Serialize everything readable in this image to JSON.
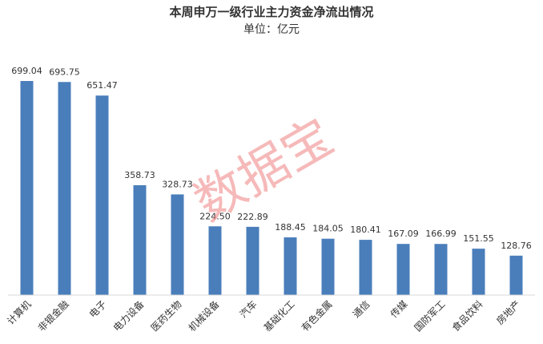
{
  "chart_data": {
    "type": "bar",
    "title": "本周申万一级行业主力资金净流出情况",
    "subtitle": "单位：亿元",
    "watermark": "数据宝",
    "categories": [
      "计算机",
      "非银金融",
      "电子",
      "电力设备",
      "医药生物",
      "机械设备",
      "汽车",
      "基础化工",
      "有色金属",
      "通信",
      "传媒",
      "国防军工",
      "食品饮料",
      "房地产"
    ],
    "values": [
      699.04,
      695.75,
      651.47,
      358.73,
      328.73,
      224.5,
      222.89,
      188.45,
      184.05,
      180.41,
      167.09,
      166.99,
      151.55,
      128.76
    ],
    "value_labels": [
      "699.04",
      "695.75",
      "651.47",
      "358.73",
      "328.73",
      "224.50",
      "222.89",
      "188.45",
      "184.05",
      "180.41",
      "167.09",
      "166.99",
      "151.55",
      "128.76"
    ],
    "color": "#4a7ebb"
  }
}
